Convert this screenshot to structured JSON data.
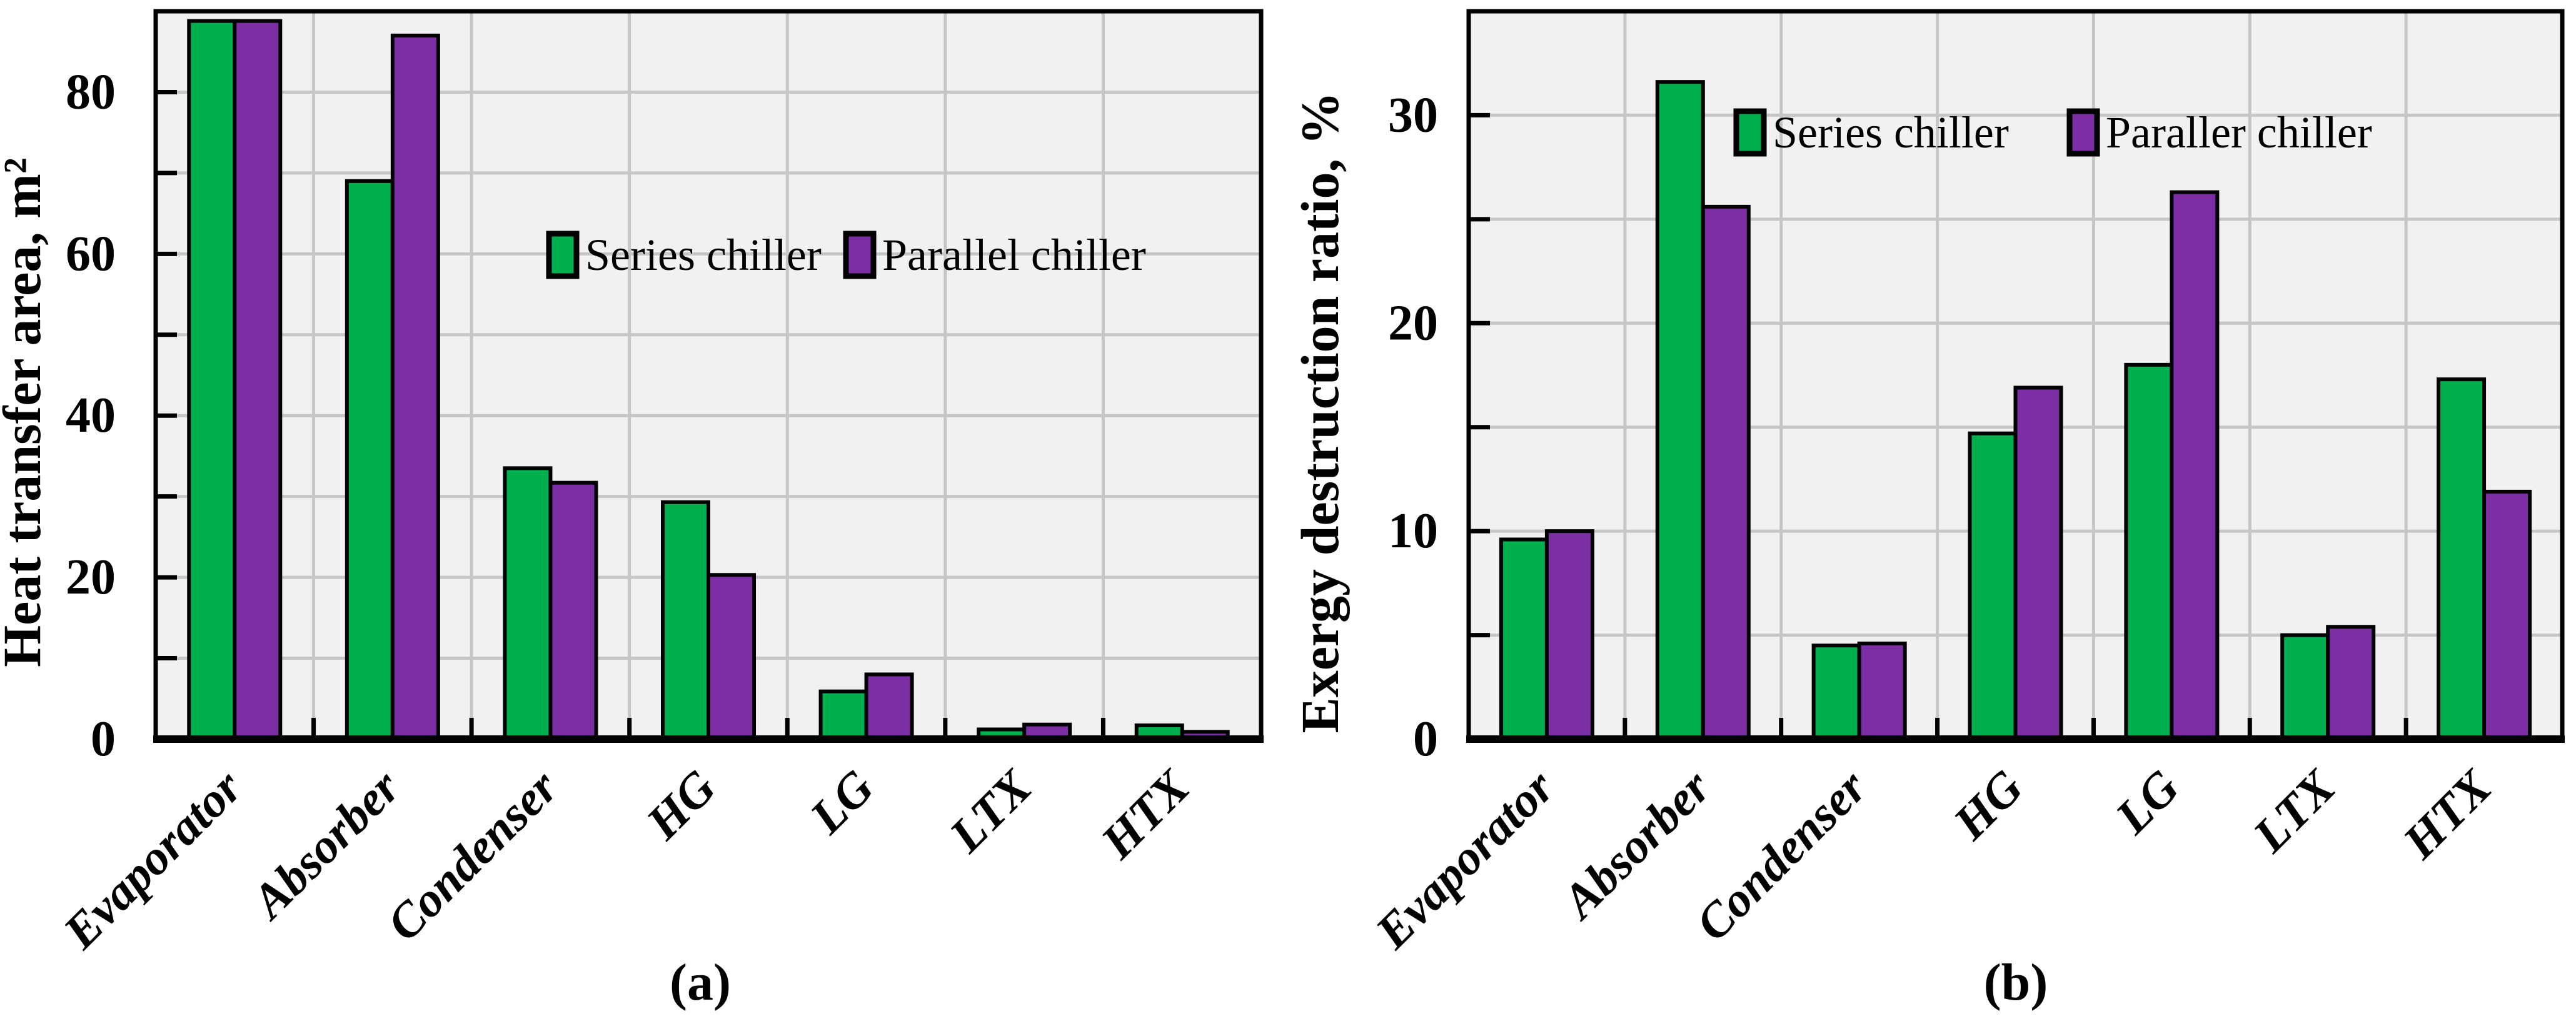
{
  "colors": {
    "series_green": "#00AF4E",
    "parallel_purple": "#7C2EA5",
    "plot_background": "#F1F1F1",
    "gridline": "#C6C6C6",
    "axis": "#000000",
    "bar_outline": "#000000"
  },
  "chart_data": [
    {
      "type": "bar",
      "panel_label": "(a)",
      "title": "",
      "xlabel": "",
      "ylabel": "Heat transfer area, m²",
      "ylim": [
        0,
        90
      ],
      "grid_step": 10,
      "grid": "on",
      "legend_position": "center",
      "yticks": [
        {
          "value": 0,
          "label": "0"
        },
        {
          "value": 20,
          "label": "20"
        },
        {
          "value": 40,
          "label": "40"
        },
        {
          "value": 60,
          "label": "60"
        },
        {
          "value": 80,
          "label": "80"
        }
      ],
      "categories": [
        "Evaporator",
        "Absorber",
        "Condenser",
        "HG",
        "LG",
        "LTX",
        "HTX"
      ],
      "series": [
        {
          "name": "Series chiller",
          "color": "#00AF4E",
          "values": [
            88.8,
            69.0,
            33.5,
            29.3,
            5.9,
            1.2,
            1.7
          ]
        },
        {
          "name": "Parallel chiller",
          "color": "#7C2EA5",
          "values": [
            88.8,
            87.0,
            31.7,
            20.3,
            8.0,
            1.8,
            0.9
          ]
        }
      ]
    },
    {
      "type": "bar",
      "panel_label": "(b)",
      "title": "",
      "xlabel": "",
      "ylabel": "Exergy destruction ratio, %",
      "ylim": [
        0,
        35
      ],
      "grid_step": 5,
      "grid": "on",
      "legend_position": "top",
      "yticks": [
        {
          "value": 0,
          "label": "0"
        },
        {
          "value": 10,
          "label": "10"
        },
        {
          "value": 20,
          "label": "20"
        },
        {
          "value": 30,
          "label": "30"
        }
      ],
      "categories": [
        "Evaporator",
        "Absorber",
        "Condenser",
        "HG",
        "LG",
        "LTX",
        "HTX"
      ],
      "series": [
        {
          "name": "Series chiller",
          "color": "#00AF4E",
          "values": [
            9.6,
            31.6,
            4.5,
            14.7,
            18.0,
            5.0,
            17.3
          ]
        },
        {
          "name": "Paraller chiller",
          "color": "#7C2EA5",
          "values": [
            10.0,
            25.6,
            4.6,
            16.9,
            26.3,
            5.4,
            11.9
          ]
        }
      ]
    }
  ]
}
